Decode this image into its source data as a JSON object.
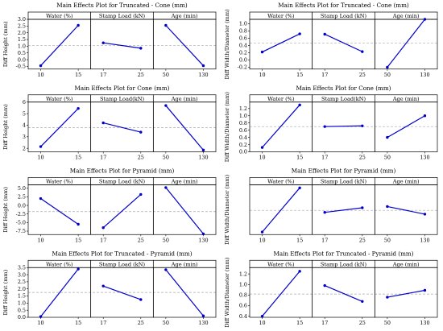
{
  "figure": {
    "rows": 4,
    "cols": 2
  },
  "chart_data": [
    {
      "type": "line",
      "title": "Main Effects Plot for Truncated - Cone (mm)",
      "ylabel": "Diff Height (mm)",
      "ylim": [
        -0.7,
        3.0
      ],
      "yticks": [
        -0.5,
        0.0,
        0.5,
        1.0,
        1.5,
        2.0,
        2.5,
        3.0
      ],
      "yticklabels": [
        "-0.5",
        "0.0",
        "0.5",
        "1.0",
        "1.5",
        "2.0",
        "2.5",
        "3.0"
      ],
      "mean": 1.05,
      "factors": [
        {
          "name": "Water (%)",
          "x": [
            "10",
            "15"
          ],
          "y": [
            -0.45,
            2.55
          ]
        },
        {
          "name": "Stamp Load (kN)",
          "x": [
            "17",
            "25"
          ],
          "y": [
            1.25,
            0.85
          ]
        },
        {
          "name": "Age (min)",
          "x": [
            "50",
            "130"
          ],
          "y": [
            2.55,
            -0.45
          ]
        }
      ]
    },
    {
      "type": "line",
      "title": "Main Effects Plot for Truncated - Cone (mm)",
      "ylabel": "Diff Width/Diameter (mm)",
      "ylim": [
        -0.25,
        1.12
      ],
      "yticks": [
        -0.2,
        0.0,
        0.2,
        0.4,
        0.6,
        0.8,
        1.0
      ],
      "yticklabels": [
        "-0.2",
        "0.0",
        "0.2",
        "0.4",
        "0.6",
        "0.8",
        "1.0"
      ],
      "mean": 0.47,
      "factors": [
        {
          "name": "Water (%)",
          "x": [
            "10",
            "15"
          ],
          "y": [
            0.22,
            0.72
          ]
        },
        {
          "name": "Stamp Load (kN)",
          "x": [
            "17",
            "25"
          ],
          "y": [
            0.71,
            0.23
          ]
        },
        {
          "name": "Age (min)",
          "x": [
            "50",
            "130"
          ],
          "y": [
            -0.2,
            1.12
          ]
        }
      ]
    },
    {
      "type": "line",
      "title": "Main Effects Plot for Cone (mm)",
      "ylabel": "Diff Height (mm)",
      "ylim": [
        1.7,
        6.0
      ],
      "yticks": [
        2,
        3,
        4,
        5,
        6
      ],
      "yticklabels": [
        "2",
        "3",
        "4",
        "5",
        "6"
      ],
      "mean": 3.8,
      "factors": [
        {
          "name": "Water (%)",
          "x": [
            "10",
            "15"
          ],
          "y": [
            2.15,
            5.45
          ]
        },
        {
          "name": "Stamp Load(kN)",
          "x": [
            "17",
            "25"
          ],
          "y": [
            4.2,
            3.4
          ]
        },
        {
          "name": "Age (min)",
          "x": [
            "50",
            "130"
          ],
          "y": [
            5.7,
            1.85
          ]
        }
      ]
    },
    {
      "type": "line",
      "title": "Main Effects Plot for Cone (mm)",
      "ylabel": "Diff Width/Diameter (mm)",
      "ylim": [
        0.0,
        1.38
      ],
      "yticks": [
        0.0,
        0.2,
        0.4,
        0.6,
        0.8,
        1.0,
        1.2
      ],
      "yticklabels": [
        "0.0",
        "0.2",
        "0.4",
        "0.6",
        "0.8",
        "1.0",
        "1.2"
      ],
      "mean": 0.7,
      "factors": [
        {
          "name": "Water (%)",
          "x": [
            "10",
            "15"
          ],
          "y": [
            0.12,
            1.3
          ]
        },
        {
          "name": "Stamp Load(kN)",
          "x": [
            "17",
            "25"
          ],
          "y": [
            0.7,
            0.72
          ]
        },
        {
          "name": "Age (min)",
          "x": [
            "50",
            "130"
          ],
          "y": [
            0.4,
            1.0
          ]
        }
      ]
    },
    {
      "type": "line",
      "title": "Main Effects Plot for Pyramid (mm)",
      "ylabel": "Diff Height (mm)",
      "ylim": [
        -8.5,
        6.0
      ],
      "yticks": [
        -7.5,
        -5.0,
        -2.5,
        0.0,
        2.5,
        5.0
      ],
      "yticklabels": [
        "-7.5",
        "-5.0",
        "-2.5",
        "0.0",
        "2.5",
        "5.0"
      ],
      "mean": -1.8,
      "factors": [
        {
          "name": "Water (%)",
          "x": [
            "10",
            "15"
          ],
          "y": [
            2.0,
            -5.5
          ]
        },
        {
          "name": "Stamp Load (kN)",
          "x": [
            "17",
            "25"
          ],
          "y": [
            -6.5,
            3.2
          ]
        },
        {
          "name": "Age (min)",
          "x": [
            "50",
            "130"
          ],
          "y": [
            5.2,
            -8.3
          ]
        }
      ]
    },
    {
      "type": "line",
      "title": "Main Effects Plot for Pyramid (mm)",
      "ylabel": "Diff Width/Diameter (mm)",
      "ylim": [
        0.55,
        2.5
      ],
      "yticks": [],
      "yticklabels": [],
      "mean": 1.5,
      "factors": [
        {
          "name": "Water (%)",
          "x": [
            "10",
            "15"
          ],
          "y": [
            0.65,
            2.38
          ]
        },
        {
          "name": "Stamp Load (kN)",
          "x": [
            "17",
            "25"
          ],
          "y": [
            1.42,
            1.6
          ]
        },
        {
          "name": "Age (min)",
          "x": [
            "50",
            "130"
          ],
          "y": [
            1.65,
            1.35
          ]
        }
      ]
    },
    {
      "type": "line",
      "title": "Main Effects Plot for Truncated - Pyramid (mm)",
      "ylabel": "Diff Height (mm)",
      "ylim": [
        0.0,
        3.5
      ],
      "yticks": [
        0.0,
        0.5,
        1.0,
        1.5,
        2.0,
        2.5,
        3.0,
        3.5
      ],
      "yticklabels": [
        "0.0",
        "0.5",
        "1.0",
        "1.5",
        "2.0",
        "2.5",
        "3.0",
        "3.5"
      ],
      "mean": 1.75,
      "factors": [
        {
          "name": "Water (%)",
          "x": [
            "10",
            "15"
          ],
          "y": [
            0.05,
            3.4
          ]
        },
        {
          "name": "Stamp Load (kN)",
          "x": [
            "17",
            "25"
          ],
          "y": [
            2.2,
            1.25
          ]
        },
        {
          "name": "Age (min)",
          "x": [
            "50",
            "130"
          ],
          "y": [
            3.35,
            0.1
          ]
        }
      ]
    },
    {
      "type": "line",
      "title": "Main Effects Plot for Truncated - Pyramid (mm)",
      "ylabel": "Diff Width/Diameter (mm)",
      "ylim": [
        0.38,
        1.32
      ],
      "yticks": [
        0.4,
        0.6,
        0.8,
        1.0,
        1.2
      ],
      "yticklabels": [
        "0.4",
        "0.6",
        "0.8",
        "1.0",
        "1.2"
      ],
      "mean": 0.82,
      "factors": [
        {
          "name": "Water (%)",
          "x": [
            "10",
            "15"
          ],
          "y": [
            0.4,
            1.25
          ]
        },
        {
          "name": "Stamp Load (kN)",
          "x": [
            "17",
            "25"
          ],
          "y": [
            0.98,
            0.68
          ]
        },
        {
          "name": "Age (min)",
          "x": [
            "50",
            "130"
          ],
          "y": [
            0.76,
            0.89
          ]
        }
      ]
    }
  ],
  "colors": {
    "line": "#0000cc",
    "mean": "#aaaaaa",
    "axis": "#000000",
    "header": "#ffffff"
  }
}
